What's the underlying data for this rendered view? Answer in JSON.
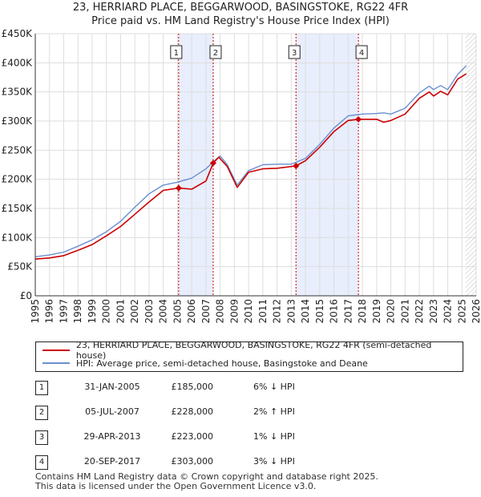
{
  "title": "23, HERRIARD PLACE, BEGGARWOOD, BASINGSTOKE, RG22 4FR",
  "subtitle": "Price paid vs. HM Land Registry's House Price Index (HPI)",
  "colors": {
    "property": "#cc0000",
    "hpi": "#6a8fd0",
    "band": "#e8eefc",
    "marker_line": "#cc0000",
    "grid": "#dddddd"
  },
  "chart_data": {
    "type": "line",
    "xlim": [
      1995,
      2026
    ],
    "ylim": [
      0,
      450000
    ],
    "x_ticks": [
      1995,
      1996,
      1997,
      1998,
      1999,
      2000,
      2001,
      2002,
      2003,
      2004,
      2005,
      2006,
      2007,
      2008,
      2009,
      2010,
      2011,
      2012,
      2013,
      2014,
      2015,
      2016,
      2017,
      2018,
      2019,
      2020,
      2021,
      2022,
      2023,
      2024,
      2025,
      2026
    ],
    "y_ticks": [
      {
        "value": 0,
        "label": "£0"
      },
      {
        "value": 50000,
        "label": "£50K"
      },
      {
        "value": 100000,
        "label": "£100K"
      },
      {
        "value": 150000,
        "label": "£150K"
      },
      {
        "value": 200000,
        "label": "£200K"
      },
      {
        "value": 250000,
        "label": "£250K"
      },
      {
        "value": 300000,
        "label": "£300K"
      },
      {
        "value": 350000,
        "label": "£350K"
      },
      {
        "value": 400000,
        "label": "£400K"
      },
      {
        "value": 450000,
        "label": "£450K"
      }
    ],
    "shaded_ranges": [
      [
        2005.08,
        2007.51
      ],
      [
        2013.33,
        2017.72
      ]
    ],
    "future_hatch_start": 2025.25,
    "series": [
      {
        "name": "23, HERRIARD PLACE, BEGGARWOOD, BASINGSTOKE, RG22 4FR (semi-detached house)",
        "color": "#cc0000",
        "x": [
          1995,
          1996,
          1997,
          1998,
          1999,
          2000,
          2001,
          2002,
          2003,
          2004,
          2005.08,
          2006,
          2007,
          2007.51,
          2007.9,
          2008.5,
          2009.2,
          2010,
          2011,
          2012,
          2013.33,
          2014,
          2015,
          2016,
          2017,
          2017.72,
          2018,
          2019,
          2019.5,
          2020,
          2021,
          2022,
          2022.7,
          2023,
          2023.5,
          2024,
          2024.7,
          2025.3
        ],
        "y": [
          63000,
          65000,
          69000,
          78000,
          88000,
          103000,
          119000,
          140000,
          161000,
          181000,
          185000,
          183000,
          197000,
          228000,
          238000,
          222000,
          186000,
          212000,
          218000,
          219000,
          223000,
          232000,
          255000,
          282000,
          301000,
          303000,
          303000,
          303000,
          298000,
          301000,
          312000,
          339000,
          350000,
          343000,
          351000,
          345000,
          372000,
          381000
        ]
      },
      {
        "name": "HPI: Average price, semi-detached house, Basingstoke and Deane",
        "color": "#6a8fd0",
        "x": [
          1995,
          1996,
          1997,
          1998,
          1999,
          2000,
          2001,
          2002,
          2003,
          2004,
          2005,
          2006,
          2007,
          2007.6,
          2008,
          2008.5,
          2009.2,
          2010,
          2011,
          2012,
          2013,
          2014,
          2015,
          2016,
          2017,
          2018,
          2019,
          2019.5,
          2020,
          2021,
          2022,
          2022.7,
          2023,
          2023.5,
          2024,
          2024.7,
          2025.3
        ],
        "y": [
          67000,
          70000,
          75000,
          85000,
          96000,
          110000,
          128000,
          152000,
          175000,
          190000,
          195000,
          202000,
          218000,
          232000,
          240000,
          225000,
          190000,
          215000,
          225000,
          226000,
          226000,
          236000,
          260000,
          288000,
          309000,
          312000,
          313000,
          314000,
          312000,
          322000,
          348000,
          360000,
          354000,
          361000,
          354000,
          380000,
          395000
        ]
      }
    ],
    "transactions": [
      {
        "num": "1",
        "x": 2005.08,
        "y": 185000,
        "date": "31-JAN-2005",
        "price": "£185,000",
        "hpi": "6% ↓ HPI"
      },
      {
        "num": "2",
        "x": 2007.51,
        "y": 228000,
        "date": "05-JUL-2007",
        "price": "£228,000",
        "hpi": "2% ↑ HPI"
      },
      {
        "num": "3",
        "x": 2013.33,
        "y": 223000,
        "date": "29-APR-2013",
        "price": "£223,000",
        "hpi": "1% ↓ HPI"
      },
      {
        "num": "4",
        "x": 2017.72,
        "y": 303000,
        "date": "20-SEP-2017",
        "price": "£303,000",
        "hpi": "3% ↓ HPI"
      }
    ]
  },
  "legend": {
    "property_label": "23, HERRIARD PLACE, BEGGARWOOD, BASINGSTOKE, RG22 4FR (semi-detached house)",
    "hpi_label": "HPI: Average price, semi-detached house, Basingstoke and Deane"
  },
  "footer": {
    "line1": "Contains HM Land Registry data © Crown copyright and database right 2025.",
    "line2": "This data is licensed under the Open Government Licence v3.0."
  }
}
